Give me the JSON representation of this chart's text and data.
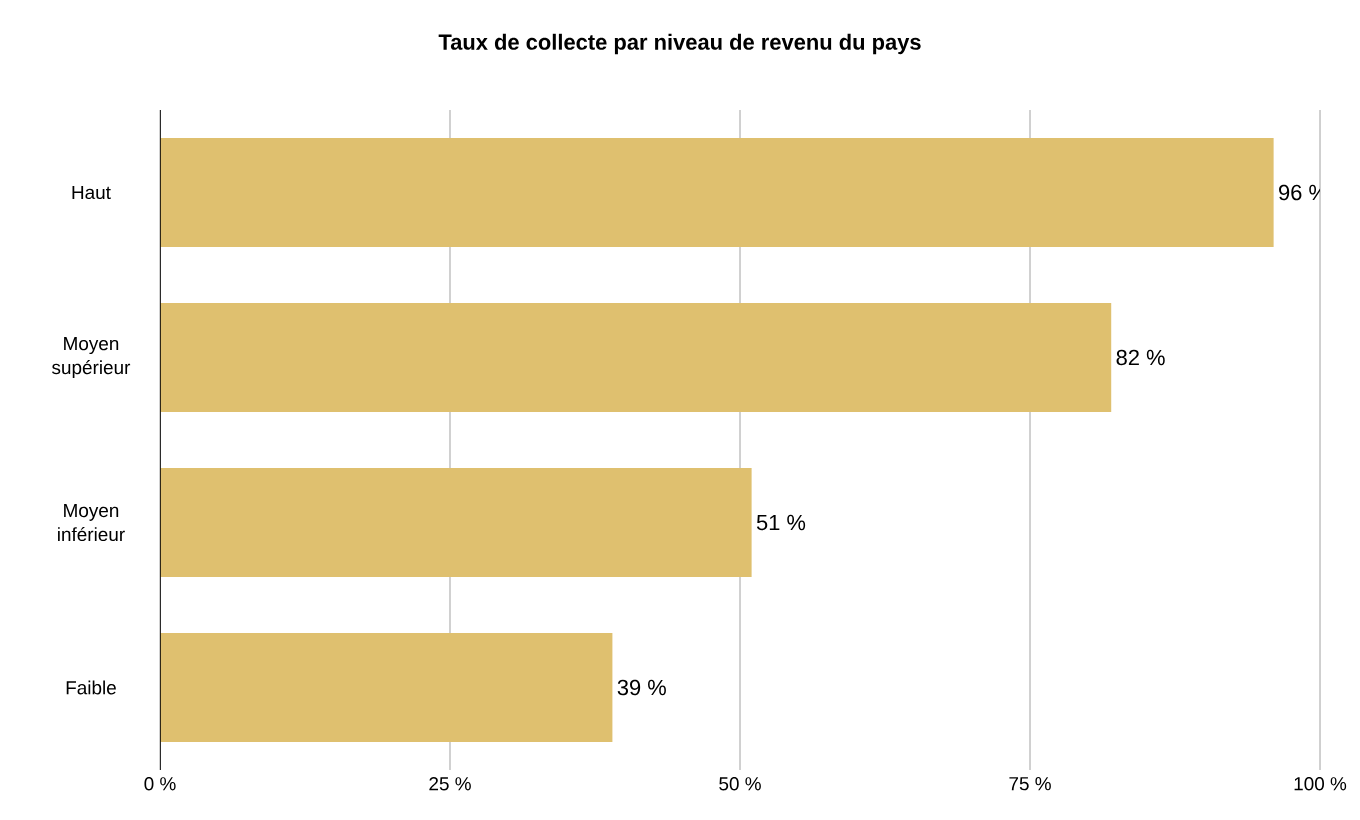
{
  "chart_data": {
    "type": "bar",
    "orientation": "horizontal",
    "title": "Taux de collecte par niveau de revenu du pays",
    "categories": [
      "Haut",
      "Moyen supérieur",
      "Moyen inférieur",
      "Faible"
    ],
    "values": [
      96,
      82,
      51,
      39
    ],
    "value_labels": [
      "96 %",
      "82 %",
      "51 %",
      "39 %"
    ],
    "color": "#dfc06f",
    "xlim": [
      0,
      100
    ],
    "xticks": [
      {
        "value": 0,
        "label": "0 %"
      },
      {
        "value": 25,
        "label": "25 %"
      },
      {
        "value": 50,
        "label": "50 %"
      },
      {
        "value": 75,
        "label": "75 %"
      },
      {
        "value": 100,
        "label": "100 %"
      }
    ],
    "grid": "x"
  }
}
